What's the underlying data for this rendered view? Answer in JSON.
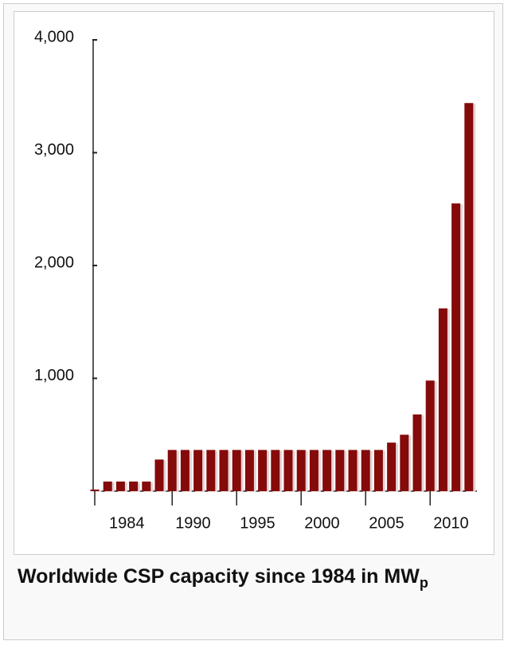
{
  "chart_data": {
    "type": "bar",
    "title": "Worldwide CSP capacity since 1984 in MW",
    "title_subscript": "p",
    "categories": [
      "1984",
      null,
      null,
      null,
      null,
      null,
      "1990",
      null,
      null,
      null,
      null,
      "1995",
      null,
      null,
      null,
      null,
      "2000",
      null,
      null,
      null,
      null,
      "2005",
      null,
      null,
      null,
      null,
      "2010",
      null,
      null,
      null
    ],
    "values": [
      14,
      85,
      85,
      85,
      85,
      280,
      365,
      365,
      365,
      365,
      365,
      365,
      365,
      365,
      365,
      365,
      365,
      365,
      365,
      365,
      365,
      365,
      365,
      430,
      500,
      680,
      980,
      1620,
      2550,
      3440
    ],
    "color": "#850a0a",
    "ylim": [
      0,
      4000
    ],
    "yticks": [
      {
        "value": 1000,
        "label": "1,000"
      },
      {
        "value": 2000,
        "label": "2,000"
      },
      {
        "value": 3000,
        "label": "3,000"
      },
      {
        "value": 4000,
        "label": "4,000"
      }
    ]
  }
}
